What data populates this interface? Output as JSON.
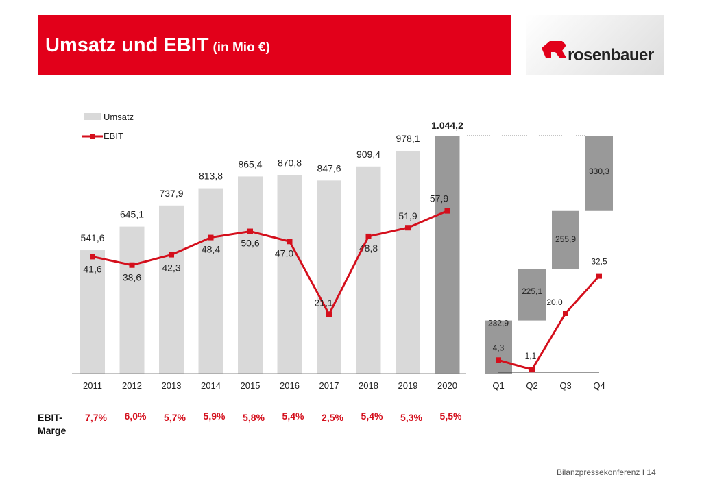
{
  "header": {
    "title": "Umsatz und EBIT",
    "unit": "(in Mio €)",
    "logo_text": "rosenbauer"
  },
  "footer": {
    "text": "Bilanzpressekonferenz I 14"
  },
  "colors": {
    "brand_red": "#e2001a",
    "bar_light": "#d9d9d9",
    "bar_dark": "#999999",
    "line_red": "#d40f1c"
  },
  "margin_label": "EBIT-\nMarge",
  "chart_data": [
    {
      "type": "bar+line",
      "legend": [
        "Umsatz",
        "EBIT"
      ],
      "legend_position": "top-left",
      "categories": [
        "2011",
        "2012",
        "2013",
        "2014",
        "2015",
        "2016",
        "2017",
        "2018",
        "2019",
        "2020"
      ],
      "series": [
        {
          "name": "Umsatz",
          "type": "bar",
          "values": [
            541.6,
            645.1,
            737.9,
            813.8,
            865.4,
            870.8,
            847.6,
            909.4,
            978.1,
            1044.2
          ],
          "labels": [
            "541,6",
            "645,1",
            "737,9",
            "813,8",
            "865,4",
            "870,8",
            "847,6",
            "909,4",
            "978,1",
            "1.044,2"
          ]
        },
        {
          "name": "EBIT",
          "type": "line",
          "values": [
            41.6,
            38.6,
            42.3,
            48.4,
            50.6,
            47.0,
            21.1,
            48.8,
            51.9,
            57.9
          ],
          "labels": [
            "41,6",
            "38,6",
            "42,3",
            "48,4",
            "50,6",
            "47,0",
            "21,1",
            "48,8",
            "51,9",
            "57,9"
          ]
        }
      ],
      "ebit_margin": [
        "7,7%",
        "6,0%",
        "5,7%",
        "5,9%",
        "5,8%",
        "5,4%",
        "2,5%",
        "5,4%",
        "5,3%",
        "5,5%"
      ]
    },
    {
      "type": "waterfall+line",
      "categories": [
        "Q1",
        "Q2",
        "Q3",
        "Q4"
      ],
      "series": [
        {
          "name": "Umsatz",
          "type": "waterfall",
          "values": [
            232.9,
            225.1,
            255.9,
            330.3
          ],
          "labels": [
            "232,9",
            "225,1",
            "255,9",
            "330,3"
          ]
        },
        {
          "name": "EBIT",
          "type": "line",
          "values": [
            4.3,
            1.1,
            20.0,
            32.5
          ],
          "labels": [
            "4,3",
            "1,1",
            "20,0",
            "32,5"
          ]
        }
      ]
    }
  ]
}
